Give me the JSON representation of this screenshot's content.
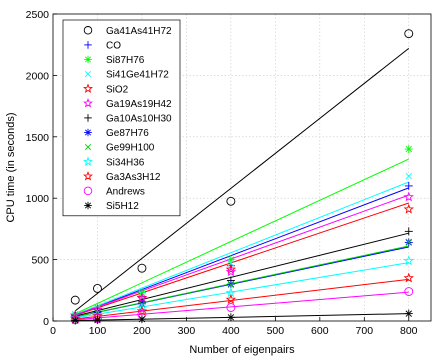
{
  "chart_data": {
    "type": "scatter",
    "title": "",
    "xlabel": "Number of eigenpairs",
    "ylabel": "CPU time (in seconds)",
    "xlim": [
      0,
      850
    ],
    "ylim": [
      0,
      2500
    ],
    "xticks": [
      0,
      100,
      200,
      300,
      400,
      500,
      600,
      700,
      800
    ],
    "yticks": [
      0,
      500,
      1000,
      1500,
      2000,
      2500
    ],
    "grid": true,
    "legend_position": "top-left",
    "x": [
      50,
      100,
      200,
      400,
      800
    ],
    "series": [
      {
        "name": "Ga41As41H72",
        "color": "#000000",
        "marker": "circle",
        "values": [
          170,
          265,
          430,
          975,
          2340
        ],
        "fit": [
          -60,
          2.85
        ]
      },
      {
        "name": "CO",
        "color": "#0000ff",
        "marker": "plus",
        "values": [
          45,
          95,
          200,
          450,
          1100
        ],
        "fit": [
          -20,
          1.38
        ]
      },
      {
        "name": "Si87H76",
        "color": "#00ff00",
        "marker": "asterisk",
        "values": [
          55,
          110,
          230,
          500,
          1400
        ],
        "fit": [
          -25,
          1.68
        ]
      },
      {
        "name": "Si41Ge41H72",
        "color": "#00ffff",
        "marker": "x",
        "values": [
          50,
          105,
          215,
          470,
          1180
        ],
        "fit": [
          -20,
          1.44
        ]
      },
      {
        "name": "SiO2",
        "color": "#ff0000",
        "marker": "star",
        "values": [
          45,
          90,
          190,
          420,
          910
        ],
        "fit": [
          -15,
          1.22
        ]
      },
      {
        "name": "Ga19As19H42",
        "color": "#ff00ff",
        "marker": "star",
        "values": [
          45,
          90,
          185,
          400,
          1010
        ],
        "fit": [
          -15,
          1.3
        ]
      },
      {
        "name": "Ga10As10H30",
        "color": "#000000",
        "marker": "plus",
        "values": [
          40,
          75,
          155,
          330,
          730
        ],
        "fit": [
          -5,
          0.9
        ]
      },
      {
        "name": "Ge87H76",
        "color": "#0000ff",
        "marker": "asterisk",
        "values": [
          35,
          70,
          140,
          300,
          640
        ],
        "fit": [
          -5,
          0.76
        ]
      },
      {
        "name": "Ge99H100",
        "color": "#00cc00",
        "marker": "x",
        "values": [
          35,
          65,
          135,
          295,
          645
        ],
        "fit": [
          -5,
          0.77
        ]
      },
      {
        "name": "Si34H36",
        "color": "#00ffff",
        "marker": "star",
        "values": [
          25,
          50,
          105,
          230,
          490
        ],
        "fit": [
          -5,
          0.6
        ]
      },
      {
        "name": "Ga3As3H12",
        "color": "#ff0000",
        "marker": "star",
        "values": [
          20,
          40,
          80,
          175,
          350
        ],
        "fit": [
          -5,
          0.43
        ]
      },
      {
        "name": "Andrews",
        "color": "#ff00ff",
        "marker": "circle",
        "values": [
          10,
          20,
          55,
          110,
          240
        ],
        "fit": [
          -5,
          0.3
        ]
      },
      {
        "name": "Si5H12",
        "color": "#000000",
        "marker": "asterisk",
        "values": [
          4,
          8,
          15,
          30,
          60
        ],
        "fit": [
          0,
          0.075
        ]
      }
    ]
  }
}
